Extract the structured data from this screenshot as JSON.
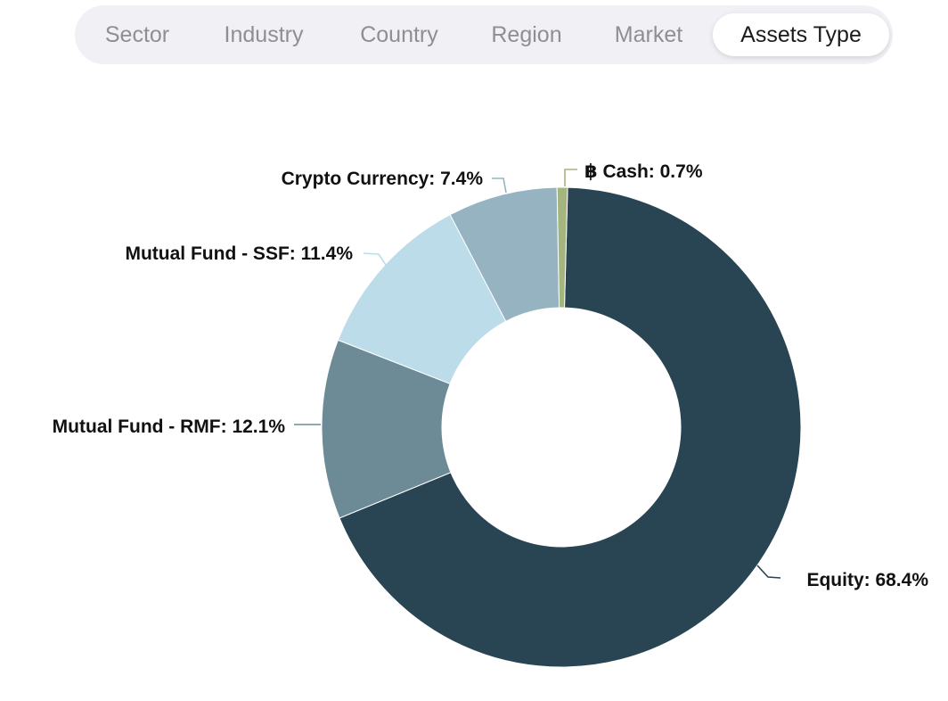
{
  "tabs": [
    {
      "label": "Sector",
      "active": false
    },
    {
      "label": "Industry",
      "active": false
    },
    {
      "label": "Country",
      "active": false
    },
    {
      "label": "Region",
      "active": false
    },
    {
      "label": "Market",
      "active": false
    },
    {
      "label": "Assets Type",
      "active": true
    }
  ],
  "chart_data": {
    "type": "pie",
    "donut": true,
    "title": "",
    "legend": "none",
    "slices": [
      {
        "label": "Equity",
        "value": 68.4,
        "text": "Equity: 68.4%",
        "color": "#294452"
      },
      {
        "label": "Mutual Fund - RMF",
        "value": 12.1,
        "text": "Mutual Fund - RMF: 12.1%",
        "color": "#6c8b97"
      },
      {
        "label": "Mutual Fund - SSF",
        "value": 11.4,
        "text": "Mutual Fund - SSF: 11.4%",
        "color": "#bcdcea"
      },
      {
        "label": "Crypto Currency",
        "value": 7.4,
        "text": "Crypto Currency: 7.4%",
        "color": "#95b3c0"
      },
      {
        "label": "฿ Cash",
        "value": 0.7,
        "text": "฿ Cash: 0.7%",
        "color": "#a4b57e"
      }
    ]
  }
}
